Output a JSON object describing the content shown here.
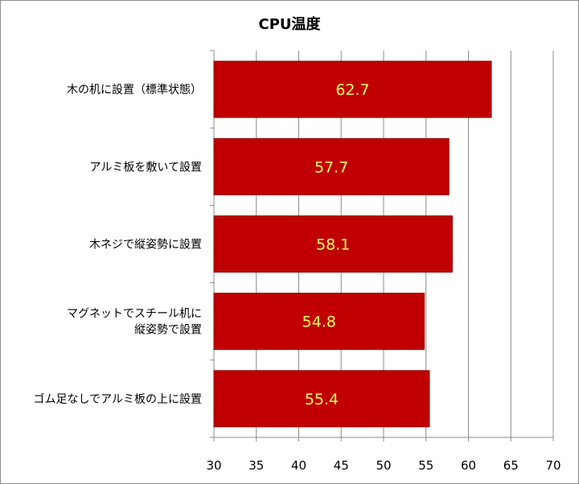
{
  "chart_data": {
    "type": "bar",
    "orientation": "horizontal",
    "title": "CPU温度",
    "categories": [
      [
        "木の机に設置（標準状態）"
      ],
      [
        "アルミ板を敷いて設置"
      ],
      [
        "木ネジで縦姿勢に設置"
      ],
      [
        "マグネットでスチール机に",
        "縦姿勢で設置"
      ],
      [
        "ゴム足なしでアルミ板の上に設置"
      ]
    ],
    "values": [
      62.7,
      57.7,
      58.1,
      54.8,
      55.4
    ],
    "value_labels": [
      "62.7",
      "57.7",
      "58.1",
      "54.8",
      "55.4"
    ],
    "xlim": [
      30,
      70
    ],
    "ticks": [
      "30",
      "35",
      "40",
      "45",
      "50",
      "55",
      "60",
      "65",
      "70"
    ],
    "grid": true,
    "legend": "none",
    "bar_color": "#c00000",
    "label_color": "#ffff66"
  }
}
